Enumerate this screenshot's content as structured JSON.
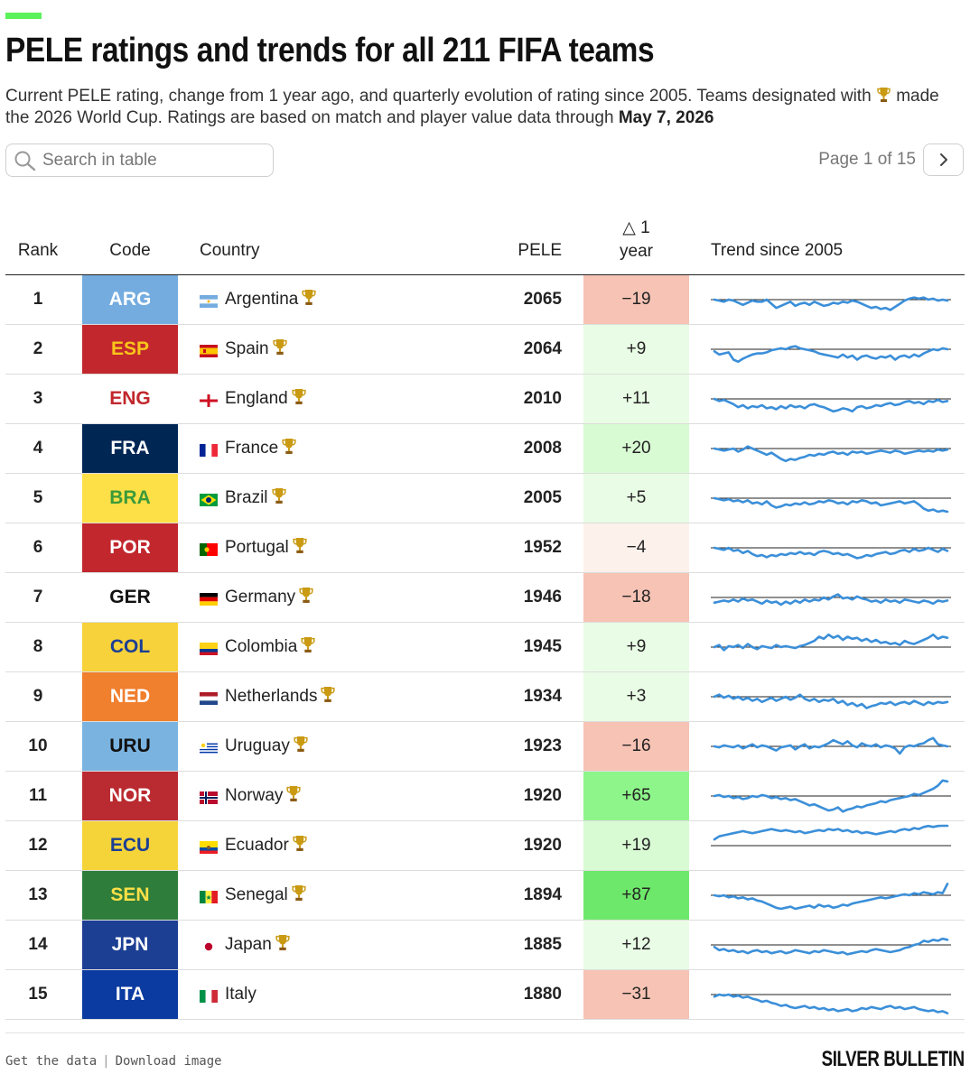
{
  "header": {
    "title": "PELE ratings and trends for all 211 FIFA teams",
    "subtitle_part1": "Current PELE rating, change from 1 year ago, and quarterly evolution of rating since 2005. Teams designated with ",
    "subtitle_part2": " made the 2026 World Cup. Ratings are based on match and player value data through ",
    "subtitle_date": "May 7, 2026"
  },
  "search": {
    "placeholder": "Search in table",
    "value": ""
  },
  "pagination": {
    "label": "Page 1 of 15"
  },
  "columns": {
    "rank": "Rank",
    "code": "Code",
    "country": "Country",
    "pele": "PELE",
    "delta_line1": "△ 1",
    "delta_line2": "year",
    "trend": "Trend since 2005"
  },
  "rows": [
    {
      "rank": "1",
      "code": "ARG",
      "country": "Argentina",
      "pele": "2065",
      "delta": "−19",
      "delta_value": -19,
      "world_cup": true,
      "code_bg": "#74acdf",
      "code_fg": "#ffffff",
      "flag": "argentina",
      "trend": [
        0,
        -1,
        -2,
        0,
        -1,
        -3,
        -5,
        -3,
        -1,
        -2,
        -2,
        0,
        -4,
        -8,
        -6,
        -4,
        -2,
        -6,
        -4,
        -3,
        -5,
        -2,
        -4,
        -6,
        -5,
        -3,
        -4,
        -2,
        -3,
        -1,
        -2,
        -4,
        -6,
        -8,
        -7,
        -9,
        -8,
        -10,
        -7,
        -4,
        -1,
        1,
        2,
        1,
        2,
        0,
        1,
        -1,
        0,
        -1
      ]
    },
    {
      "rank": "2",
      "code": "ESP",
      "country": "Spain",
      "pele": "2064",
      "delta": "+9",
      "delta_value": 9,
      "world_cup": true,
      "code_bg": "#c1272d",
      "code_fg": "#f9c51a",
      "flag": "spain",
      "trend": [
        -2,
        -5,
        -4,
        -3,
        -10,
        -12,
        -9,
        -7,
        -5,
        -4,
        -4,
        -3,
        -1,
        0,
        1,
        0,
        2,
        3,
        1,
        0,
        -1,
        -2,
        -4,
        -5,
        -6,
        -7,
        -8,
        -5,
        -8,
        -6,
        -10,
        -7,
        -6,
        -8,
        -9,
        -7,
        -8,
        -6,
        -10,
        -7,
        -6,
        -8,
        -5,
        -7,
        -4,
        -2,
        0,
        -1,
        1,
        0
      ]
    },
    {
      "rank": "3",
      "code": "ENG",
      "country": "England",
      "pele": "2010",
      "delta": "+11",
      "delta_value": 11,
      "world_cup": true,
      "code_bg": "#ffffff",
      "code_fg": "#c1272d",
      "flag": "england",
      "trend": [
        0,
        -2,
        -1,
        -3,
        -5,
        -8,
        -6,
        -9,
        -7,
        -8,
        -6,
        -9,
        -8,
        -10,
        -7,
        -9,
        -6,
        -8,
        -7,
        -9,
        -6,
        -5,
        -7,
        -8,
        -10,
        -12,
        -11,
        -9,
        -10,
        -12,
        -8,
        -7,
        -9,
        -8,
        -6,
        -7,
        -5,
        -4,
        -6,
        -5,
        -3,
        -2,
        -4,
        -3,
        -5,
        -2,
        -3,
        -1,
        -3,
        -2
      ]
    },
    {
      "rank": "4",
      "code": "FRA",
      "country": "France",
      "pele": "2008",
      "delta": "+20",
      "delta_value": 20,
      "world_cup": true,
      "code_bg": "#002654",
      "code_fg": "#ffffff",
      "flag": "france",
      "trend": [
        0,
        -1,
        -2,
        -1,
        0,
        -3,
        -1,
        2,
        0,
        -2,
        -4,
        -6,
        -4,
        -7,
        -10,
        -12,
        -10,
        -11,
        -9,
        -8,
        -6,
        -7,
        -5,
        -6,
        -4,
        -3,
        -5,
        -4,
        -6,
        -3,
        -4,
        -3,
        -5,
        -4,
        -3,
        -2,
        -3,
        -4,
        -2,
        -3,
        -5,
        -4,
        -3,
        -2,
        -3,
        -2,
        -3,
        -1,
        -2,
        -1
      ]
    },
    {
      "rank": "5",
      "code": "BRA",
      "country": "Brazil",
      "pele": "2005",
      "delta": "+5",
      "delta_value": 5,
      "world_cup": true,
      "code_bg": "#fde047",
      "code_fg": "#3a9a3a",
      "flag": "brazil",
      "trend": [
        0,
        -1,
        -2,
        -1,
        -3,
        -2,
        -4,
        -2,
        -5,
        -4,
        -6,
        -3,
        -7,
        -9,
        -8,
        -6,
        -7,
        -5,
        -6,
        -4,
        -6,
        -5,
        -3,
        -4,
        -2,
        -3,
        -5,
        -4,
        -6,
        -3,
        -4,
        -2,
        -3,
        -5,
        -4,
        -7,
        -6,
        -5,
        -4,
        -3,
        -5,
        -4,
        -3,
        -6,
        -10,
        -12,
        -11,
        -13,
        -12,
        -13
      ]
    },
    {
      "rank": "6",
      "code": "POR",
      "country": "Portugal",
      "pele": "1952",
      "delta": "−4",
      "delta_value": -4,
      "world_cup": true,
      "code_bg": "#c1272d",
      "code_fg": "#ffffff",
      "flag": "portugal",
      "trend": [
        0,
        -1,
        -2,
        0,
        -3,
        -2,
        -5,
        -3,
        -6,
        -8,
        -7,
        -9,
        -7,
        -8,
        -6,
        -7,
        -5,
        -6,
        -4,
        -6,
        -5,
        -7,
        -4,
        -3,
        -4,
        -6,
        -5,
        -7,
        -6,
        -8,
        -10,
        -9,
        -7,
        -8,
        -6,
        -5,
        -4,
        -6,
        -5,
        -3,
        -2,
        -4,
        -1,
        -3,
        -2,
        0,
        -2,
        -4,
        -1,
        -3
      ]
    },
    {
      "rank": "7",
      "code": "GER",
      "country": "Germany",
      "pele": "1946",
      "delta": "−18",
      "delta_value": -18,
      "world_cup": true,
      "code_bg": "#ffffff",
      "code_fg": "#111111",
      "flag": "germany",
      "trend": [
        -5,
        -4,
        -3,
        -4,
        -2,
        -4,
        -1,
        -3,
        -2,
        -4,
        -6,
        -3,
        -5,
        -4,
        -7,
        -4,
        -6,
        -3,
        -5,
        -2,
        -4,
        -2,
        -3,
        0,
        -2,
        1,
        3,
        -1,
        0,
        -2,
        1,
        -1,
        -2,
        -4,
        -3,
        -5,
        -2,
        -4,
        -3,
        -5,
        -2,
        -3,
        -4,
        -5,
        -3,
        -4,
        -6,
        -3,
        -4,
        -3
      ]
    },
    {
      "rank": "8",
      "code": "COL",
      "country": "Colombia",
      "pele": "1945",
      "delta": "+9",
      "delta_value": 9,
      "world_cup": true,
      "code_bg": "#f7d23a",
      "code_fg": "#1c3f94",
      "flag": "colombia",
      "trend": [
        0,
        2,
        -3,
        1,
        0,
        2,
        -1,
        3,
        0,
        -2,
        1,
        0,
        -1,
        2,
        0,
        1,
        0,
        -1,
        1,
        2,
        4,
        6,
        10,
        8,
        12,
        9,
        11,
        7,
        10,
        8,
        9,
        6,
        8,
        5,
        7,
        4,
        5,
        3,
        4,
        2,
        6,
        4,
        3,
        5,
        7,
        9,
        12,
        8,
        10,
        9
      ]
    },
    {
      "rank": "9",
      "code": "NED",
      "country": "Netherlands",
      "pele": "1934",
      "delta": "+3",
      "delta_value": 3,
      "world_cup": true,
      "code_bg": "#f07f2e",
      "code_fg": "#ffffff",
      "flag": "netherlands",
      "trend": [
        0,
        2,
        -1,
        1,
        -2,
        0,
        -3,
        -1,
        -4,
        -2,
        -5,
        -3,
        -1,
        -4,
        -2,
        0,
        -3,
        -1,
        2,
        -2,
        -4,
        -2,
        -5,
        -3,
        -4,
        -2,
        -6,
        -4,
        -8,
        -6,
        -9,
        -7,
        -11,
        -9,
        -8,
        -6,
        -7,
        -5,
        -8,
        -6,
        -5,
        -7,
        -4,
        -6,
        -8,
        -5,
        -7,
        -5,
        -6,
        -5
      ]
    },
    {
      "rank": "10",
      "code": "URU",
      "country": "Uruguay",
      "pele": "1923",
      "delta": "−16",
      "delta_value": -16,
      "world_cup": true,
      "code_bg": "#7ab3e0",
      "code_fg": "#111111",
      "flag": "uruguay",
      "trend": [
        0,
        -1,
        1,
        0,
        -1,
        1,
        -2,
        0,
        2,
        -1,
        1,
        0,
        -2,
        -4,
        -1,
        0,
        1,
        -3,
        0,
        2,
        -2,
        0,
        -1,
        1,
        3,
        6,
        4,
        2,
        5,
        1,
        -1,
        3,
        1,
        0,
        2,
        -1,
        1,
        0,
        -2,
        -7,
        -1,
        1,
        0,
        2,
        3,
        6,
        8,
        2,
        1,
        0
      ]
    },
    {
      "rank": "11",
      "code": "NOR",
      "country": "Norway",
      "pele": "1920",
      "delta": "+65",
      "delta_value": 65,
      "world_cup": true,
      "code_bg": "#ba2b31",
      "code_fg": "#ffffff",
      "flag": "norway",
      "trend": [
        0,
        1,
        -1,
        0,
        -2,
        -1,
        -3,
        -2,
        0,
        -1,
        1,
        0,
        -2,
        -1,
        -3,
        -2,
        -4,
        -3,
        -5,
        -7,
        -9,
        -8,
        -10,
        -12,
        -14,
        -13,
        -11,
        -15,
        -13,
        -12,
        -10,
        -11,
        -9,
        -8,
        -7,
        -5,
        -6,
        -4,
        -3,
        -2,
        -1,
        0,
        2,
        1,
        3,
        5,
        7,
        10,
        15,
        14
      ]
    },
    {
      "rank": "12",
      "code": "ECU",
      "country": "Ecuador",
      "pele": "1920",
      "delta": "+19",
      "delta_value": 19,
      "world_cup": true,
      "code_bg": "#f5d43a",
      "code_fg": "#1c3f94",
      "flag": "ecuador",
      "trend": [
        6,
        9,
        10,
        11,
        12,
        13,
        14,
        13,
        12,
        13,
        14,
        15,
        16,
        15,
        14,
        15,
        14,
        13,
        14,
        12,
        13,
        14,
        15,
        14,
        16,
        15,
        16,
        14,
        15,
        13,
        14,
        12,
        13,
        12,
        11,
        12,
        13,
        14,
        13,
        15,
        16,
        15,
        17,
        16,
        18,
        19,
        18,
        19,
        20,
        20
      ]
    },
    {
      "rank": "13",
      "code": "SEN",
      "country": "Senegal",
      "pele": "1894",
      "delta": "+87",
      "delta_value": 87,
      "world_cup": true,
      "code_bg": "#2f7d3b",
      "code_fg": "#fde047",
      "flag": "senegal",
      "trend": [
        0,
        -1,
        0,
        -2,
        -1,
        -3,
        -2,
        -4,
        -3,
        -5,
        -6,
        -8,
        -10,
        -12,
        -13,
        -12,
        -11,
        -13,
        -12,
        -11,
        -10,
        -12,
        -9,
        -11,
        -10,
        -12,
        -11,
        -9,
        -10,
        -8,
        -7,
        -6,
        -5,
        -4,
        -3,
        -2,
        -3,
        -2,
        -1,
        0,
        1,
        0,
        2,
        1,
        3,
        2,
        1,
        3,
        2,
        11
      ]
    },
    {
      "rank": "14",
      "code": "JPN",
      "country": "Japan",
      "pele": "1885",
      "delta": "+12",
      "delta_value": 12,
      "world_cup": true,
      "code_bg": "#1c3f94",
      "code_fg": "#ffffff",
      "flag": "japan",
      "trend": [
        -2,
        -5,
        -4,
        -6,
        -5,
        -7,
        -6,
        -8,
        -6,
        -5,
        -7,
        -6,
        -8,
        -7,
        -6,
        -8,
        -7,
        -5,
        -6,
        -7,
        -8,
        -6,
        -7,
        -5,
        -6,
        -7,
        -8,
        -7,
        -9,
        -8,
        -7,
        -6,
        -7,
        -5,
        -4,
        -5,
        -6,
        -7,
        -6,
        -5,
        -3,
        -2,
        0,
        1,
        4,
        3,
        5,
        4,
        6,
        5
      ]
    },
    {
      "rank": "15",
      "code": "ITA",
      "country": "Italy",
      "pele": "1880",
      "delta": "−31",
      "delta_value": -31,
      "world_cup": false,
      "code_bg": "#0b3aa0",
      "code_fg": "#ffffff",
      "flag": "italy",
      "trend": [
        -2,
        0,
        -1,
        0,
        -2,
        -1,
        -3,
        -2,
        -4,
        -5,
        -7,
        -6,
        -8,
        -9,
        -11,
        -10,
        -12,
        -13,
        -12,
        -11,
        -13,
        -12,
        -14,
        -13,
        -15,
        -14,
        -16,
        -15,
        -14,
        -16,
        -15,
        -13,
        -14,
        -12,
        -13,
        -14,
        -12,
        -11,
        -13,
        -12,
        -14,
        -13,
        -12,
        -14,
        -15,
        -16,
        -15,
        -17,
        -16,
        -18
      ]
    }
  ],
  "footer": {
    "get_data": "Get the data",
    "download": "Download image",
    "brand": "SILVER BULLETIN"
  },
  "colors": {
    "accent": "#5cf25c",
    "trend_line": "#3b8fd9",
    "negative_strong": "#f6c3b4",
    "positive_strong": "#6ee86a"
  }
}
